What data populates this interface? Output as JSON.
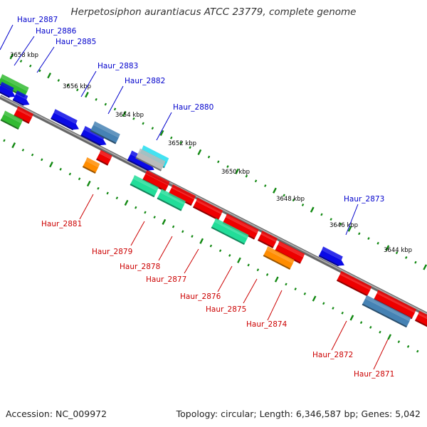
{
  "title": "Herpetosiphon aurantiacus ATCC 23779, complete genome",
  "footer": {
    "accession": "Accession: NC_009972",
    "topology": "Topology: circular; Length: 6,346,587 bp; Genes: 5,042"
  },
  "colors": {
    "backbone": "#888888",
    "label_top": "#0000cc",
    "label_bottom": "#cc0000",
    "tick": "#118811",
    "blue": "#0a0ae6",
    "steel": "#4682b4",
    "red": "#ee0000",
    "green": "#33bb33",
    "mint": "#22dd99",
    "orange": "#ff8c00",
    "cyan": "#22ddee",
    "gray": "#bbbbbb"
  },
  "scale_labels": [
    "3658 kbp",
    "3656 kbp",
    "3654 kbp",
    "3652 kbp",
    "3650 kbp",
    "3648 kbp",
    "3646 kbp",
    "3644 kbp"
  ],
  "gene_labels_top": [
    "Haur_2887",
    "Haur_2886",
    "Haur_2885",
    "Haur_2883",
    "Haur_2882",
    "Haur_2880",
    "Haur_2873"
  ],
  "gene_labels_bottom": [
    "Haur_2881",
    "Haur_2879",
    "Haur_2878",
    "Haur_2877",
    "Haur_2876",
    "Haur_2875",
    "Haur_2874",
    "Haur_2872",
    "Haur_2871"
  ]
}
